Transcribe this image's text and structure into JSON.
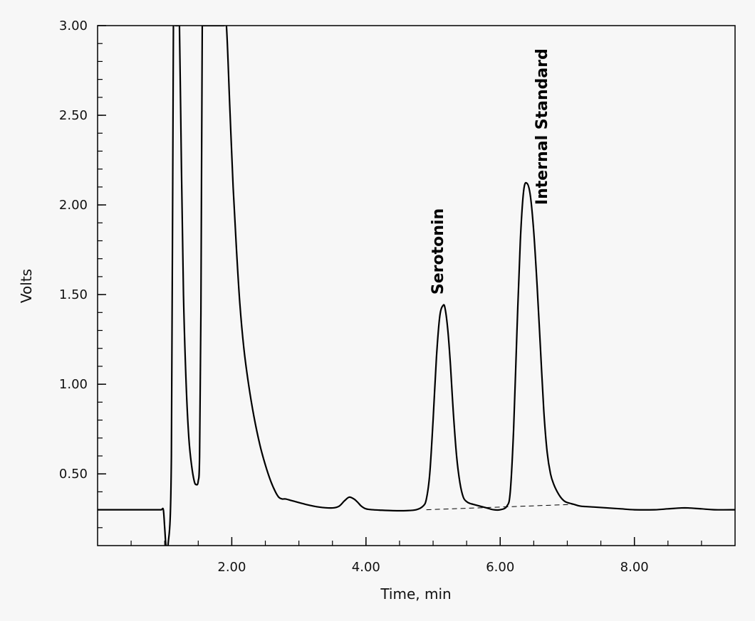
{
  "chart_data": {
    "type": "line",
    "title": "",
    "xlabel": "Time, min",
    "ylabel": "Volts",
    "xlim": [
      0.0,
      9.5
    ],
    "ylim": [
      0.1,
      3.0
    ],
    "x_ticks": [
      {
        "value": 2.0,
        "label": "2.00"
      },
      {
        "value": 4.0,
        "label": "4.00"
      },
      {
        "value": 6.0,
        "label": "6.00"
      },
      {
        "value": 8.0,
        "label": "8.00"
      }
    ],
    "y_ticks": [
      {
        "value": 0.5,
        "label": "0.50"
      },
      {
        "value": 1.0,
        "label": "1.00"
      },
      {
        "value": 1.5,
        "label": "1.50"
      },
      {
        "value": 2.0,
        "label": "2.00"
      },
      {
        "value": 2.5,
        "label": "2.50"
      },
      {
        "value": 3.0,
        "label": "3.00"
      }
    ],
    "x_minor_step": 0.5,
    "y_minor_step": 0.1,
    "grid": false,
    "series": [
      {
        "x": [
          0.0,
          0.5,
          0.9,
          0.95,
          0.98,
          1.0,
          1.02,
          1.05,
          1.1,
          1.13,
          1.16,
          1.18,
          1.2,
          1.22,
          1.25,
          1.28,
          1.32,
          1.36,
          1.4,
          1.44,
          1.47,
          1.5,
          1.52,
          1.54,
          1.56,
          1.58,
          1.6,
          1.88,
          1.92,
          1.97,
          2.02,
          2.07,
          2.12,
          2.18,
          2.25,
          2.33,
          2.42,
          2.5,
          2.58,
          2.65,
          2.7,
          2.75,
          2.8,
          2.9,
          3.1,
          3.3,
          3.5,
          3.6,
          3.68,
          3.75,
          3.82,
          3.88,
          3.93,
          4.0,
          4.1,
          4.2,
          4.4,
          4.6,
          4.75,
          4.85,
          4.9,
          4.95,
          5.0,
          5.05,
          5.1,
          5.15,
          5.18,
          5.22,
          5.26,
          5.3,
          5.35,
          5.4,
          5.45,
          5.5,
          5.55,
          5.6,
          5.7,
          5.8,
          5.9,
          6.0,
          6.1,
          6.15,
          6.2,
          6.25,
          6.3,
          6.35,
          6.4,
          6.45,
          6.5,
          6.55,
          6.6,
          6.65,
          6.7,
          6.75,
          6.8,
          6.85,
          6.9,
          6.95,
          7.0,
          7.1,
          7.2,
          7.4,
          7.6,
          7.8,
          8.0,
          8.3,
          8.5,
          8.7,
          8.8,
          9.0,
          9.2,
          9.5
        ],
        "y": [
          0.3,
          0.3,
          0.3,
          0.3,
          0.3,
          0.2,
          0.1,
          0.1,
          0.6,
          3.0,
          3.0,
          3.0,
          3.0,
          3.0,
          2.2,
          1.5,
          1.0,
          0.7,
          0.55,
          0.46,
          0.44,
          0.46,
          0.6,
          1.4,
          3.0,
          3.0,
          3.0,
          3.0,
          3.0,
          2.55,
          2.1,
          1.75,
          1.45,
          1.2,
          1.0,
          0.82,
          0.66,
          0.55,
          0.46,
          0.4,
          0.37,
          0.36,
          0.36,
          0.35,
          0.33,
          0.315,
          0.31,
          0.32,
          0.35,
          0.37,
          0.36,
          0.34,
          0.32,
          0.305,
          0.3,
          0.298,
          0.295,
          0.295,
          0.3,
          0.32,
          0.36,
          0.5,
          0.8,
          1.15,
          1.38,
          1.44,
          1.42,
          1.3,
          1.1,
          0.85,
          0.6,
          0.45,
          0.37,
          0.345,
          0.335,
          0.33,
          0.32,
          0.31,
          0.3,
          0.3,
          0.32,
          0.4,
          0.75,
          1.3,
          1.8,
          2.08,
          2.12,
          2.05,
          1.85,
          1.55,
          1.2,
          0.85,
          0.62,
          0.5,
          0.44,
          0.4,
          0.37,
          0.35,
          0.34,
          0.33,
          0.32,
          0.315,
          0.31,
          0.305,
          0.3,
          0.3,
          0.305,
          0.31,
          0.31,
          0.305,
          0.3,
          0.3
        ]
      }
    ],
    "baseline": {
      "x": [
        4.9,
        7.1
      ],
      "y": [
        0.3,
        0.33
      ]
    },
    "annotations": [
      {
        "text": "Serotonin",
        "x": 5.15,
        "y": 1.5
      },
      {
        "text": "Internal Standard",
        "x": 6.7,
        "y": 2.0
      }
    ]
  }
}
